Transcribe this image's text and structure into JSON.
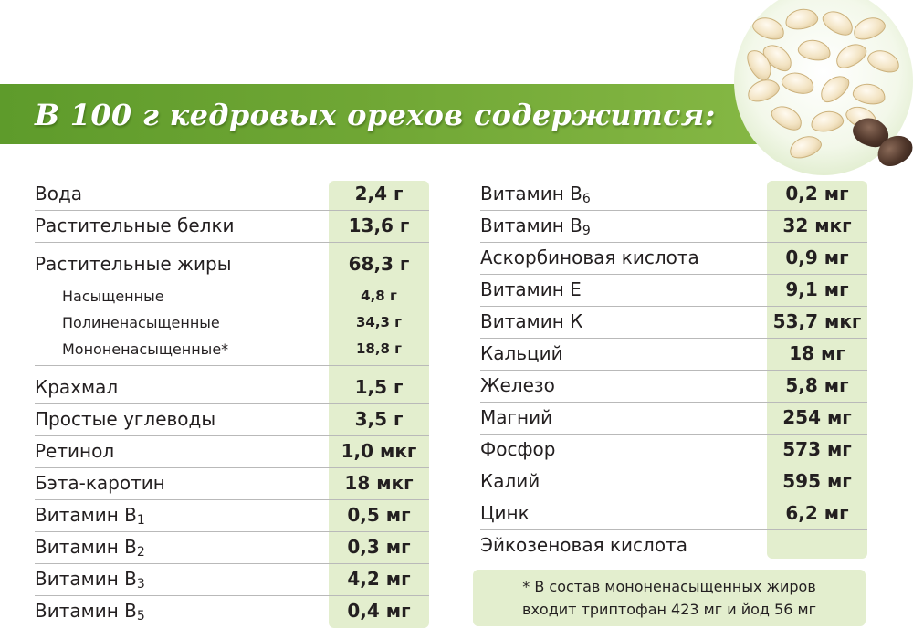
{
  "banner": {
    "title": "В 100 г кедровых орехов содержится:"
  },
  "left_table": [
    {
      "label": "Вода",
      "value": "2,4 г"
    },
    {
      "label": "Растительные белки",
      "value": "13,6 г"
    },
    {
      "label": "Растительные жиры",
      "value": "68,3 г"
    },
    {
      "label": "Насыщенные",
      "value": "4,8 г",
      "sub": true
    },
    {
      "label": "Полиненасыщенные",
      "value": "34,3 г",
      "sub": true
    },
    {
      "label": "Мононенасыщенные*",
      "value": "18,8 г",
      "sub": true
    },
    {
      "label": "Крахмал",
      "value": "1,5 г"
    },
    {
      "label": "Простые углеводы",
      "value": "3,5 г"
    },
    {
      "label": "Ретинол",
      "value": "1,0 мкг"
    },
    {
      "label": "Бэта-каротин",
      "value": "18 мкг"
    },
    {
      "label": "Витамин В",
      "index": "1",
      "value": "0,5 мг"
    },
    {
      "label": "Витамин В",
      "index": "2",
      "value": "0,3 мг"
    },
    {
      "label": "Витамин В",
      "index": "3",
      "value": "4,2 мг"
    },
    {
      "label": "Витамин В",
      "index": "5",
      "value": "0,4 мг"
    }
  ],
  "right_table": [
    {
      "label": "Витамин В",
      "index": "6",
      "value": "0,2 мг"
    },
    {
      "label": "Витамин В",
      "index": "9",
      "value": "32 мкг"
    },
    {
      "label": "Аскорбиновая кислота",
      "value": "0,9 мг"
    },
    {
      "label": "Витамин Е",
      "value": "9,1 мг"
    },
    {
      "label": "Витамин К",
      "value": "53,7 мкг"
    },
    {
      "label": "Кальций",
      "value": "18 мг"
    },
    {
      "label": "Железо",
      "value": "5,8 мг"
    },
    {
      "label": "Магний",
      "value": "254 мг"
    },
    {
      "label": "Фосфор",
      "value": "573 мг"
    },
    {
      "label": "Калий",
      "value": "595 мг"
    },
    {
      "label": "Цинк",
      "value": "6,2 мг"
    },
    {
      "label": "Эйкозеновая кислота",
      "value": ""
    }
  ],
  "footnote": {
    "line1": "* В состав мононенасыщенных жиров",
    "line2": "входит триптофан 423 мг и йод 56 мг"
  },
  "colors": {
    "banner_green": "#6fa634",
    "value_column": "#e3eece",
    "rule": "#b9b9b9",
    "text": "#231f20"
  }
}
